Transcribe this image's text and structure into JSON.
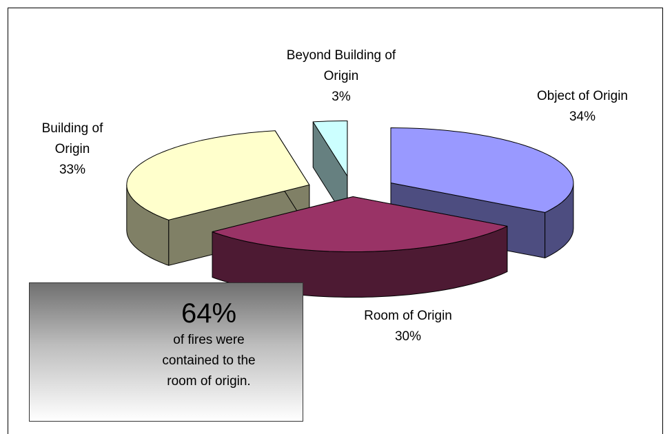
{
  "chart_data": {
    "type": "pie",
    "categories": [
      "Object of Origin",
      "Room of Origin",
      "Building of Origin",
      "Beyond Building of Origin"
    ],
    "values": [
      34,
      30,
      33,
      3
    ],
    "value_labels": [
      "34%",
      "30%",
      "33%",
      "3%"
    ],
    "colors": [
      "#9999ff",
      "#993366",
      "#ffffcc",
      "#ccffff"
    ],
    "annotation": {
      "headline": "64%",
      "text": "of fires were contained to the room of origin."
    }
  }
}
